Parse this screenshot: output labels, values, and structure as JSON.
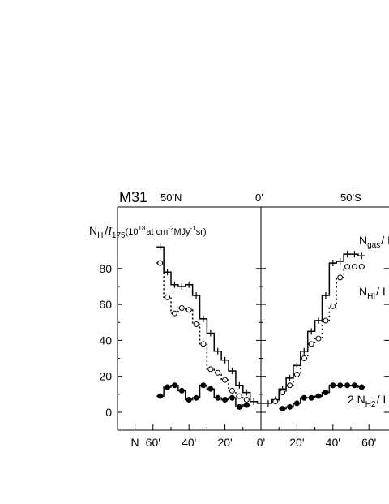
{
  "chart_data": {
    "type": "line",
    "title": "M31",
    "top_labels": {
      "left": "50'N",
      "center": "0'",
      "right": "50'S"
    },
    "ylabel": {
      "main": "N",
      "sub": "H",
      "slash": "/",
      "i_main": "I",
      "i_sub": "175",
      "units_prefix": "(10",
      "units_exp": "18",
      "units_mid": "at cm",
      "units_exp2": "-2",
      "units_mid2": "MJy",
      "units_exp3": "-1",
      "units_end": "sr)"
    },
    "ylim": [
      -7,
      97
    ],
    "y_ticks": [
      "0",
      "20",
      "40",
      "60",
      "80"
    ],
    "y_tick_values": [
      0,
      20,
      40,
      60,
      80
    ],
    "x_tick_labels": [
      {
        "label": "N",
        "offset": -70
      },
      {
        "label": "60'",
        "offset": -60
      },
      {
        "label": "40'",
        "offset": -40
      },
      {
        "label": "20'",
        "offset": -20
      },
      {
        "label": "0'",
        "offset": 0
      },
      {
        "label": "20'",
        "offset": 20
      },
      {
        "label": "40'",
        "offset": 40
      },
      {
        "label": "60'",
        "offset": 60
      }
    ],
    "x_minor_ticks": [
      -60,
      -50,
      -40,
      -30,
      -20,
      -10,
      0,
      10,
      20,
      30,
      40,
      50,
      60
    ],
    "series": [
      {
        "name": "N_gas/I",
        "label_main": "N",
        "label_sub": "gas",
        "label_tail": "/ I",
        "style": "solid-step-plus",
        "x": [
          -56,
          -52,
          -48,
          -44,
          -40,
          -36,
          -32,
          -28,
          -24,
          -20,
          -16,
          -12,
          -8,
          -4,
          0,
          4,
          8,
          12,
          16,
          20,
          24,
          28,
          32,
          36,
          40,
          44,
          48,
          52,
          56
        ],
        "y": [
          92,
          78,
          71,
          70,
          71,
          65,
          52,
          44,
          34,
          29,
          23,
          15,
          11,
          6,
          5,
          5,
          7,
          13,
          19,
          26,
          34,
          45,
          51,
          65,
          83,
          84,
          88,
          88,
          87
        ]
      },
      {
        "name": "N_HI/I",
        "label_main": "N",
        "label_sub": "HI",
        "label_tail": "/ I",
        "style": "dotted-step-open",
        "x": [
          -56,
          -52,
          -48,
          -44,
          -40,
          -36,
          -32,
          -28,
          -24,
          -20,
          -16,
          -12,
          -8,
          8,
          12,
          16,
          20,
          24,
          28,
          32,
          36,
          40,
          44,
          48,
          52,
          56
        ],
        "y": [
          83,
          64,
          55,
          58,
          57,
          49,
          38,
          24,
          22,
          18,
          12,
          9,
          7,
          6,
          11,
          15,
          21,
          30,
          38,
          41,
          51,
          59,
          75,
          81,
          81,
          81
        ]
      },
      {
        "name": "2N_H2/I",
        "label_main": "2 N",
        "label_sub": "H2",
        "label_tail": "/ I",
        "style": "solid-step-filled",
        "x": [
          -56,
          -52,
          -48,
          -44,
          -40,
          -36,
          -32,
          -28,
          -24,
          -20,
          -16,
          -12,
          -8,
          12,
          16,
          20,
          24,
          28,
          32,
          36,
          40,
          44,
          48,
          52,
          56
        ],
        "y": [
          9,
          14,
          15,
          12,
          7,
          8,
          15,
          13,
          8,
          7,
          8,
          3,
          4,
          2,
          3,
          5,
          8,
          8,
          9,
          11,
          15,
          15,
          15,
          15,
          14
        ]
      }
    ]
  }
}
